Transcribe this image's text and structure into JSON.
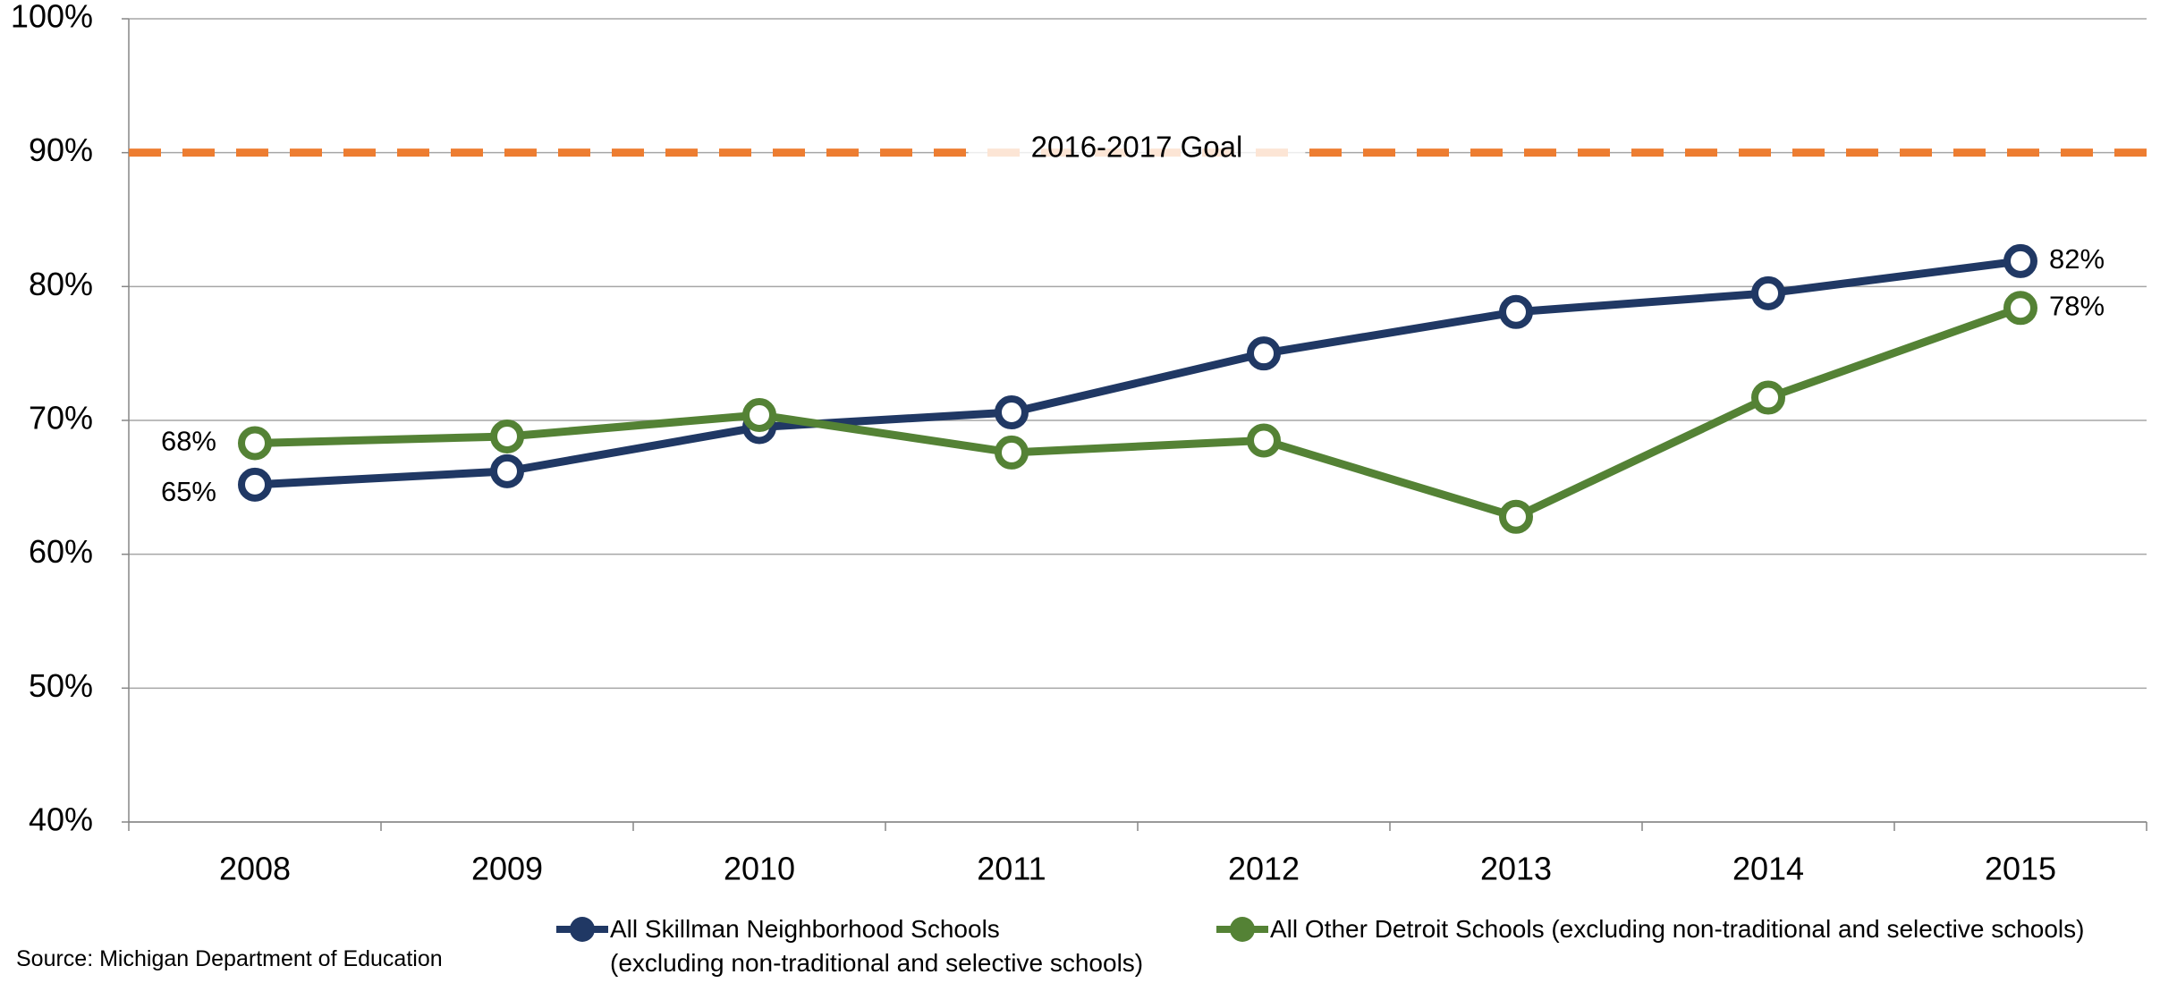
{
  "chart_data": {
    "type": "line",
    "categories": [
      "2008",
      "2009",
      "2010",
      "2011",
      "2012",
      "2013",
      "2014",
      "2015"
    ],
    "series": [
      {
        "name": "All Skillman Neighborhood Schools\n(excluding non-traditional and selective schools)",
        "color": "#203864",
        "values": [
          65.2,
          66.2,
          69.5,
          70.6,
          75.0,
          78.1,
          79.5,
          81.9
        ],
        "value_labels": [
          "65%",
          null,
          null,
          null,
          null,
          null,
          null,
          "82%"
        ]
      },
      {
        "name": "All Other Detroit Schools (excluding non-traditional and selective schools)",
        "color": "#548235",
        "values": [
          68.3,
          68.8,
          70.4,
          67.6,
          68.5,
          62.8,
          71.7,
          78.4
        ],
        "value_labels": [
          "68%",
          null,
          null,
          null,
          null,
          null,
          null,
          "78%"
        ]
      }
    ],
    "goal": {
      "value": 90,
      "label": "2016-2017 Goal",
      "color": "#ed7d31"
    },
    "ylim": [
      40,
      100
    ],
    "yticks": [
      {
        "value": 40,
        "label": "40%"
      },
      {
        "value": 50,
        "label": "50%"
      },
      {
        "value": 60,
        "label": "60%"
      },
      {
        "value": 70,
        "label": "70%"
      },
      {
        "value": 80,
        "label": "80%"
      },
      {
        "value": 90,
        "label": "90%"
      },
      {
        "value": 100,
        "label": "100%"
      }
    ],
    "grid": true,
    "source": "Source: Michigan Department of Education"
  }
}
